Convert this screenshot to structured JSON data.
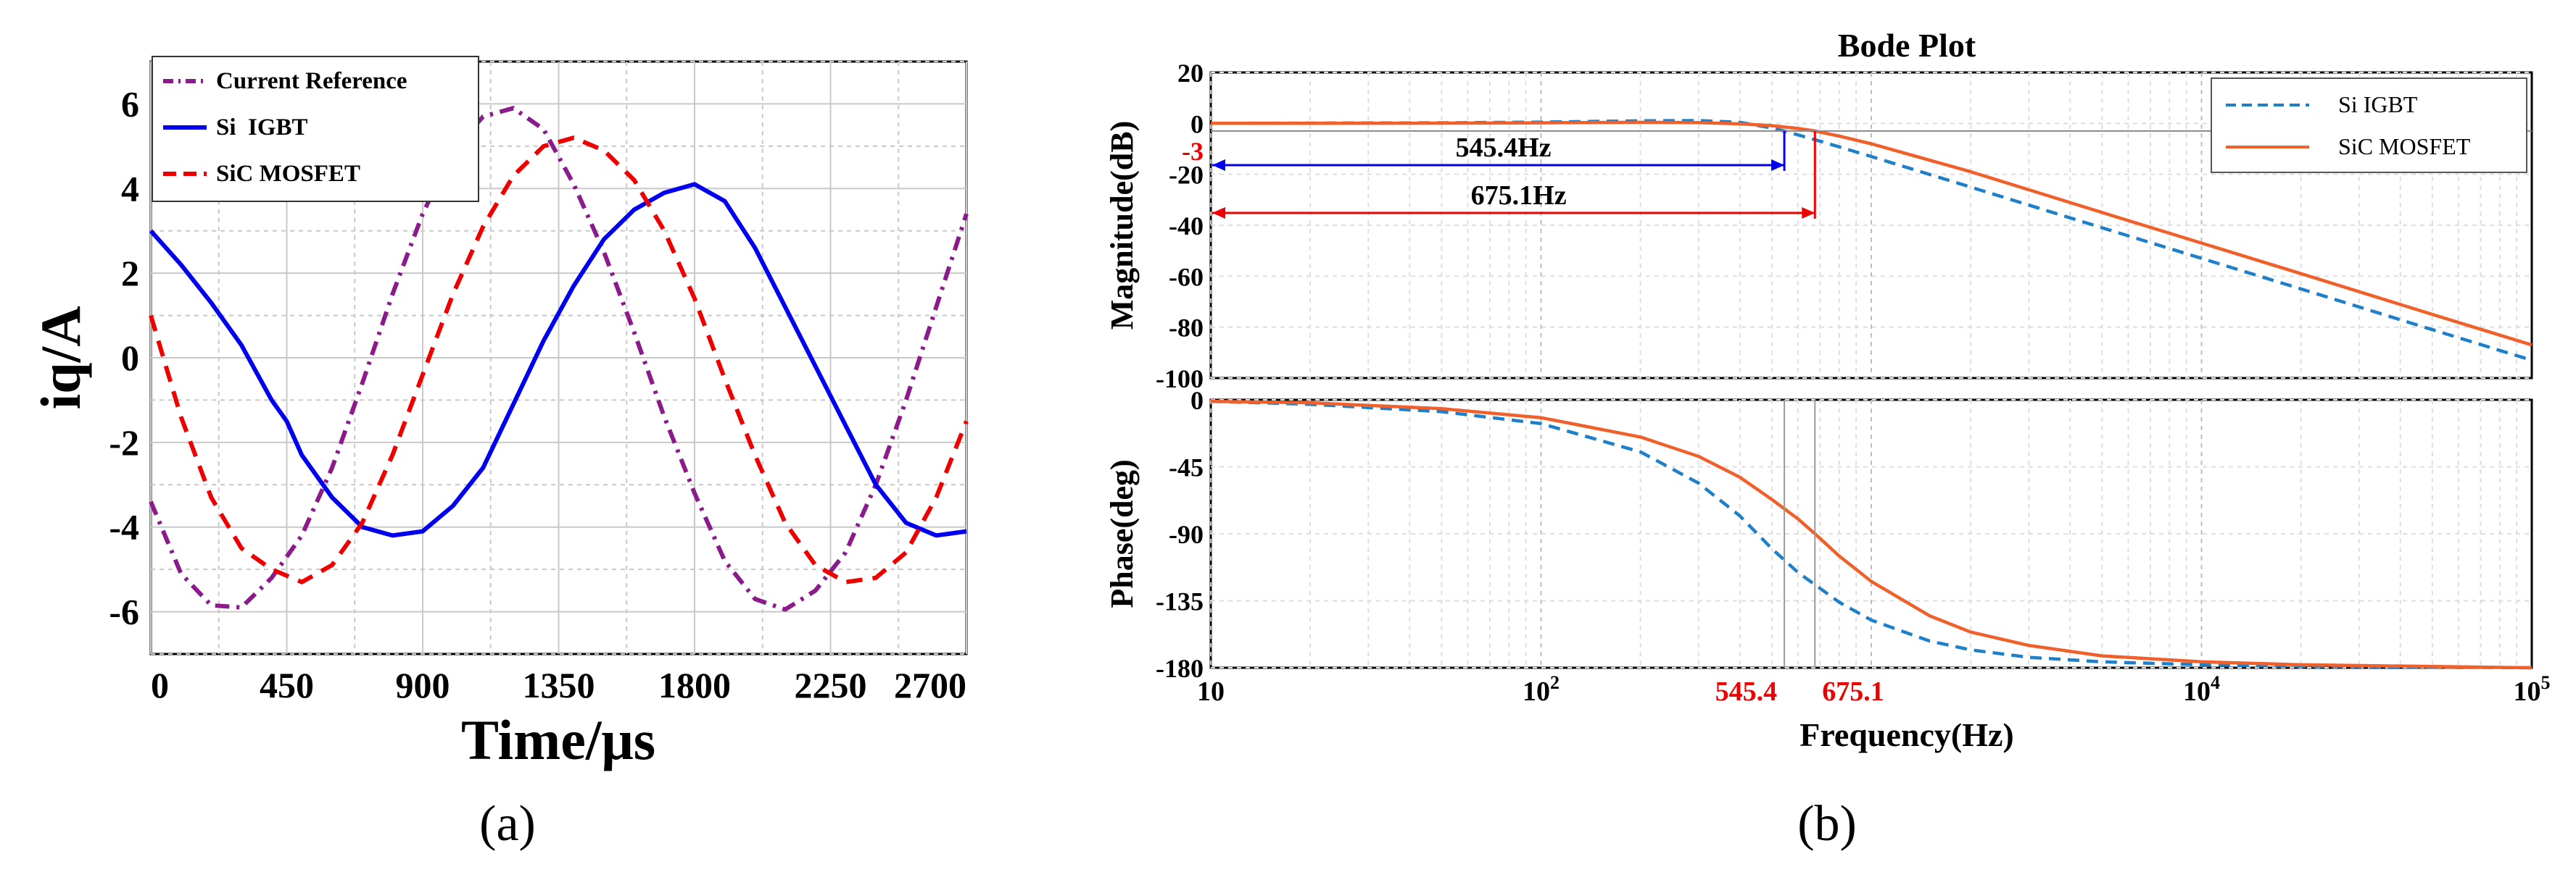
{
  "colors": {
    "purple": "#8B1A8B",
    "blue": "#0000EE",
    "red": "#EE0000",
    "si_igbt": "#1F7FC8",
    "sic_mosfet": "#F0602A",
    "marker_blue": "#0000EE",
    "marker_red": "#EE0000"
  },
  "chart_data": [
    {
      "type": "line",
      "panel_label": "(a)",
      "xlabel": "Time/μs",
      "ylabel": "iq/A",
      "xlim": [
        0,
        2700
      ],
      "ylim": [
        -7,
        7
      ],
      "x_ticks": [
        "0",
        "450",
        "900",
        "1350",
        "1800",
        "2250",
        "2700"
      ],
      "y_ticks": [
        "-6",
        "-4",
        "-2",
        "0",
        "2",
        "4",
        "6"
      ],
      "grid": true,
      "legend_position": "top-left",
      "series": [
        {
          "name": "Current Reference",
          "style": "dash-dot",
          "color_key": "purple",
          "x": [
            0,
            100,
            200,
            300,
            400,
            500,
            600,
            700,
            800,
            900,
            1000,
            1100,
            1200,
            1300,
            1400,
            1500,
            1600,
            1700,
            1800,
            1900,
            2000,
            2100,
            2200,
            2300,
            2400,
            2500,
            2600,
            2700
          ],
          "y": [
            -3.4,
            -5.1,
            -5.85,
            -5.9,
            -5.2,
            -4.2,
            -2.6,
            -0.6,
            1.5,
            3.4,
            4.9,
            5.7,
            5.9,
            5.4,
            4.1,
            2.5,
            0.6,
            -1.4,
            -3.2,
            -4.8,
            -5.7,
            -5.95,
            -5.5,
            -4.6,
            -3.0,
            -1.0,
            1.2,
            3.4
          ]
        },
        {
          "name": "Si  IGBT",
          "style": "solid",
          "color_key": "blue",
          "x": [
            0,
            100,
            200,
            300,
            400,
            450,
            500,
            600,
            700,
            800,
            900,
            1000,
            1100,
            1200,
            1300,
            1400,
            1500,
            1600,
            1700,
            1800,
            1900,
            2000,
            2100,
            2200,
            2300,
            2400,
            2500,
            2600,
            2700
          ],
          "y": [
            3.0,
            2.2,
            1.3,
            0.3,
            -1.0,
            -1.5,
            -2.3,
            -3.3,
            -4.0,
            -4.2,
            -4.1,
            -3.5,
            -2.6,
            -1.1,
            0.4,
            1.7,
            2.8,
            3.5,
            3.9,
            4.1,
            3.7,
            2.6,
            1.2,
            -0.2,
            -1.6,
            -3.0,
            -3.9,
            -4.2,
            -4.1
          ]
        },
        {
          "name": "SiC MOSFET",
          "style": "dashed",
          "color_key": "red",
          "x": [
            0,
            100,
            200,
            300,
            400,
            500,
            600,
            700,
            800,
            900,
            1000,
            1100,
            1200,
            1300,
            1400,
            1500,
            1600,
            1700,
            1800,
            1900,
            2000,
            2100,
            2200,
            2300,
            2400,
            2500,
            2600,
            2700
          ],
          "y": [
            1.0,
            -1.4,
            -3.3,
            -4.5,
            -5.0,
            -5.3,
            -4.9,
            -3.9,
            -2.3,
            -0.4,
            1.5,
            3.1,
            4.3,
            5.0,
            5.2,
            4.9,
            4.2,
            3.0,
            1.4,
            -0.5,
            -2.3,
            -3.9,
            -4.9,
            -5.3,
            -5.2,
            -4.6,
            -3.3,
            -1.5
          ]
        }
      ]
    },
    {
      "type": "line",
      "panel_label": "(b)",
      "title": "Bode Plot",
      "xlabel": "Frequency(Hz)",
      "x_scale": "log",
      "xlim": [
        10,
        100000
      ],
      "x_tick_labels": [
        {
          "value": 10,
          "text": "10"
        },
        {
          "value": 100,
          "base": "10",
          "exp": "2"
        },
        {
          "value": 10000,
          "base": "10",
          "exp": "4"
        },
        {
          "value": 100000,
          "base": "10",
          "exp": "5"
        }
      ],
      "legend_position": "top-right",
      "series_names": [
        "Si IGBT",
        "SiC MOSFET"
      ],
      "magnitude": {
        "ylabel": "Magnitude(dB)",
        "ylim": [
          -100,
          20
        ],
        "y_ticks": [
          "20",
          "0",
          "-20",
          "-40",
          "-60",
          "-80",
          "-100"
        ],
        "marker_label": "-3",
        "annotations": [
          {
            "text": "545.4Hz",
            "freq": 545.4,
            "color_key": "marker_blue"
          },
          {
            "text": "675.1Hz",
            "freq": 675.1,
            "color_key": "marker_red"
          }
        ],
        "series": [
          {
            "name": "Si IGBT",
            "style": "dashed",
            "color_key": "si_igbt",
            "freq": [
              10,
              50,
              100,
              200,
              300,
              400,
              500,
              545.4,
              700,
              1000,
              2000,
              5000,
              10000,
              20000,
              50000,
              100000
            ],
            "db": [
              0,
              0.2,
              0.5,
              1.0,
              1.1,
              0.4,
              -1.8,
              -3,
              -7,
              -13,
              -25,
              -41,
              -53,
              -65,
              -81,
              -93
            ]
          },
          {
            "name": "SiC MOSFET",
            "style": "solid",
            "color_key": "sic_mosfet",
            "freq": [
              10,
              50,
              100,
              200,
              300,
              400,
              500,
              600,
              675.1,
              800,
              1000,
              2000,
              5000,
              10000,
              20000,
              50000,
              100000
            ],
            "db": [
              0,
              0.1,
              0.2,
              0.4,
              0.3,
              -0.2,
              -0.9,
              -2.0,
              -3,
              -5,
              -8,
              -19,
              -35,
              -47,
              -59,
              -75,
              -87
            ]
          }
        ]
      },
      "phase": {
        "ylabel": "Phase(deg)",
        "ylim": [
          -180,
          0
        ],
        "y_ticks": [
          "0",
          "-45",
          "-90",
          "-135",
          "-180"
        ],
        "marker_labels": [
          {
            "text": "545.4",
            "freq": 545.4
          },
          {
            "text": "675.1",
            "freq": 675.1
          }
        ],
        "series": [
          {
            "name": "Si IGBT",
            "style": "dashed",
            "color_key": "si_igbt",
            "freq": [
              10,
              20,
              50,
              100,
              200,
              300,
              400,
              500,
              600,
              800,
              1000,
              1500,
              2000,
              3000,
              5000,
              10000,
              20000,
              100000
            ],
            "deg": [
              -1,
              -3,
              -8,
              -16,
              -35,
              -56,
              -78,
              -100,
              -116,
              -136,
              -148,
              -162,
              -168,
              -173,
              -176,
              -178,
              -179,
              -180
            ]
          },
          {
            "name": "SiC MOSFET",
            "style": "solid",
            "color_key": "sic_mosfet",
            "freq": [
              10,
              20,
              50,
              100,
              200,
              300,
              400,
              500,
              600,
              675.1,
              800,
              1000,
              1500,
              2000,
              3000,
              5000,
              10000,
              20000,
              100000
            ],
            "deg": [
              -1,
              -2,
              -6,
              -12,
              -25,
              -38,
              -52,
              -67,
              -80,
              -90,
              -105,
              -122,
              -145,
              -156,
              -165,
              -172,
              -176,
              -178,
              -180
            ]
          }
        ]
      }
    }
  ]
}
